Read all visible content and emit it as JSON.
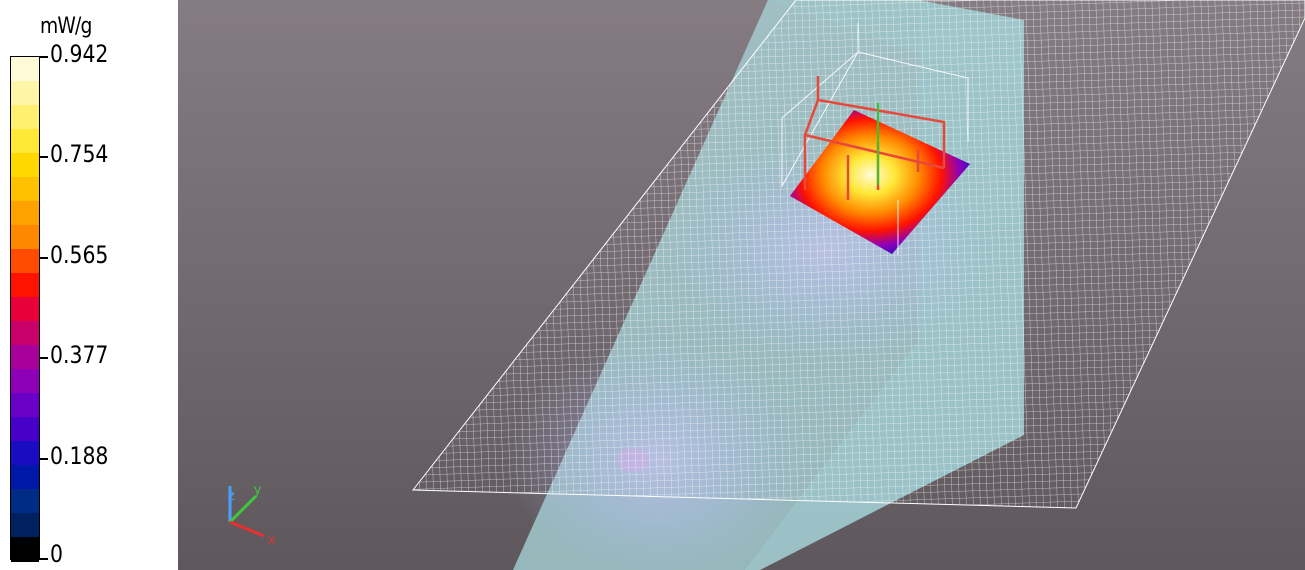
{
  "legend": {
    "unit": "mW/g",
    "ticks": [
      "0.942",
      "0.754",
      "0.565",
      "0.377",
      "0.188",
      "0"
    ],
    "colors": [
      "#fffbd8",
      "#fff5a8",
      "#fff070",
      "#ffe838",
      "#ffd800",
      "#ffc000",
      "#ffa200",
      "#ff8800",
      "#ff4c00",
      "#ff1200",
      "#e8003a",
      "#c8006a",
      "#a8009a",
      "#8e00b8",
      "#6a00c8",
      "#4600c8",
      "#1a0cc0",
      "#0018a8",
      "#002c86",
      "#002060",
      "#000000"
    ]
  },
  "axes": {
    "x_label": "x",
    "y_label": "y",
    "z_label": "z"
  },
  "viewport": {
    "background_top": "#857c82",
    "background_bottom": "#5e585d",
    "phantom_color": "#a6d2d6",
    "grid_color": "#ffffff",
    "probe_color": "#e8483a"
  }
}
